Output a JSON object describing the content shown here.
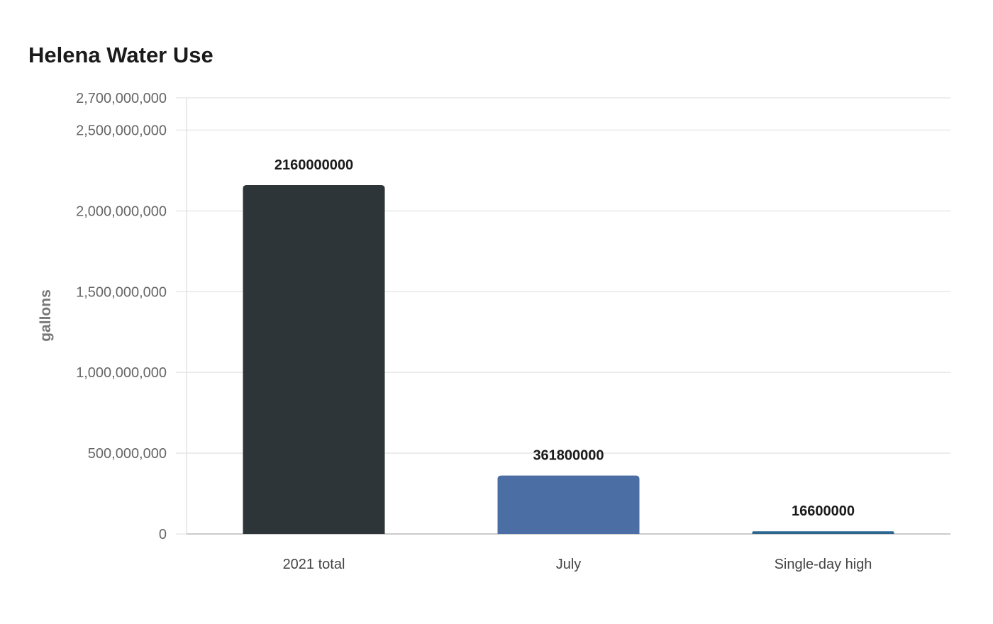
{
  "chart_data": {
    "type": "bar",
    "title": "Helena Water Use",
    "xlabel": "",
    "ylabel": "gallons",
    "categories": [
      "2021 total",
      "July",
      "Single-day high"
    ],
    "values": [
      2160000000,
      361800000,
      16600000
    ],
    "value_labels": [
      "2160000000",
      "361800000",
      "16600000"
    ],
    "colors": [
      "#2e3538",
      "#4b6ea5",
      "#2c6790"
    ],
    "ylim": [
      0,
      2700000000
    ],
    "yticks": [
      0,
      500000000,
      1000000000,
      1500000000,
      2000000000,
      2500000000,
      2700000000
    ],
    "ytick_labels": [
      "0",
      "500,000,000",
      "1,000,000,000",
      "1,500,000,000",
      "2,000,000,000",
      "2,500,000,000",
      "2,700,000,000"
    ],
    "grid": true,
    "legend": "none"
  }
}
